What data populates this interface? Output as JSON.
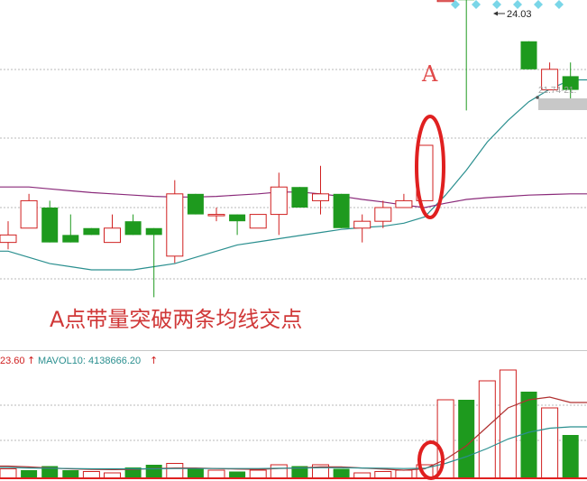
{
  "chart_data": [
    {
      "type": "candlestick",
      "panel": "price",
      "candles": [
        {
          "o": 17.56,
          "h": 17.78,
          "l": 17.33,
          "c": 17.44,
          "dir": "up"
        },
        {
          "o": 17.67,
          "h": 18.22,
          "l": 17.67,
          "c": 18.11,
          "dir": "up"
        },
        {
          "o": 18.0,
          "h": 18.11,
          "l": 17.44,
          "c": 17.44,
          "dir": "down"
        },
        {
          "o": 17.56,
          "h": 17.89,
          "l": 17.44,
          "c": 17.44,
          "dir": "down"
        },
        {
          "o": 17.67,
          "h": 17.67,
          "l": 17.56,
          "c": 17.56,
          "dir": "down"
        },
        {
          "o": 17.44,
          "h": 17.89,
          "l": 17.44,
          "c": 17.67,
          "dir": "up"
        },
        {
          "o": 17.78,
          "h": 17.89,
          "l": 17.56,
          "c": 17.56,
          "dir": "down"
        },
        {
          "o": 17.67,
          "h": 17.67,
          "l": 16.56,
          "c": 17.56,
          "dir": "down"
        },
        {
          "o": 17.22,
          "h": 18.44,
          "l": 17.11,
          "c": 18.22,
          "dir": "up"
        },
        {
          "o": 18.22,
          "h": 18.22,
          "l": 17.89,
          "c": 17.89,
          "dir": "down"
        },
        {
          "o": 17.89,
          "h": 18.0,
          "l": 17.78,
          "c": 17.89,
          "dir": "up"
        },
        {
          "o": 17.89,
          "h": 17.89,
          "l": 17.56,
          "c": 17.78,
          "dir": "down"
        },
        {
          "o": 17.67,
          "h": 17.89,
          "l": 17.67,
          "c": 17.89,
          "dir": "up"
        },
        {
          "o": 17.89,
          "h": 18.56,
          "l": 17.56,
          "c": 18.33,
          "dir": "up"
        },
        {
          "o": 18.33,
          "h": 18.33,
          "l": 18.0,
          "c": 18.0,
          "dir": "down"
        },
        {
          "o": 18.11,
          "h": 18.67,
          "l": 17.89,
          "c": 18.22,
          "dir": "up"
        },
        {
          "o": 18.22,
          "h": 18.22,
          "l": 17.67,
          "c": 17.67,
          "dir": "down"
        },
        {
          "o": 17.67,
          "h": 17.89,
          "l": 17.44,
          "c": 17.78,
          "dir": "up"
        },
        {
          "o": 17.78,
          "h": 18.11,
          "l": 17.67,
          "c": 18.0,
          "dir": "up"
        },
        {
          "o": 18.0,
          "h": 18.22,
          "l": 18.0,
          "c": 18.11,
          "dir": "up"
        },
        {
          "o": 18.11,
          "h": 19.0,
          "l": 18.11,
          "c": 19.0,
          "dir": "up"
        },
        {
          "o": 21.33,
          "h": 21.5,
          "l": 21.33,
          "c": 21.33,
          "dir": "up"
        },
        {
          "o": 21.33,
          "h": 23.44,
          "l": 19.56,
          "c": 21.67,
          "dir": "down"
        },
        {
          "o": 22.0,
          "h": 24.0,
          "l": 21.89,
          "c": 23.89,
          "dir": "up"
        },
        {
          "o": 23.0,
          "h": 23.67,
          "l": 21.89,
          "c": 22.11,
          "dir": "up"
        },
        {
          "o": 20.67,
          "h": 20.67,
          "l": 20.22,
          "c": 20.22,
          "dir": "down"
        },
        {
          "o": 20.22,
          "h": 20.33,
          "l": 19.89,
          "c": 19.89,
          "dir": "up"
        },
        {
          "o": 20.11,
          "h": 20.33,
          "l": 19.67,
          "c": 19.89,
          "dir": "down"
        }
      ],
      "ma_lines": [
        {
          "name": "",
          "color": "#2a8f8f",
          "values": [
            17.3,
            17.2,
            17.1,
            17.05,
            17.0,
            17.0,
            17.0,
            17.05,
            17.1,
            17.2,
            17.3,
            17.4,
            17.45,
            17.5,
            17.55,
            17.6,
            17.65,
            17.68,
            17.7,
            17.75,
            17.85,
            18.2,
            18.6,
            19.05,
            19.4,
            19.7,
            19.9,
            20.05
          ]
        },
        {
          "name": "",
          "color": "#8a2a7a",
          "values": [
            18.33,
            18.33,
            18.3,
            18.27,
            18.24,
            18.22,
            18.2,
            18.18,
            18.17,
            18.17,
            18.18,
            18.2,
            18.22,
            18.25,
            18.25,
            18.22,
            18.18,
            18.13,
            18.09,
            18.04,
            18.0,
            18.07,
            18.13,
            18.16,
            18.18,
            18.2,
            18.21,
            18.22
          ]
        }
      ],
      "annotations": [
        {
          "text": "24.03",
          "kind": "high-marker"
        },
        {
          "text": "21.74-21.",
          "kind": "price-tag"
        },
        {
          "text": "A",
          "kind": "point-label"
        },
        {
          "text": "A点带量突破两条均线交点",
          "kind": "caption"
        }
      ]
    },
    {
      "type": "bar",
      "panel": "volume",
      "header_value": "23.60",
      "header_label": "MAVOL10: 4138666.20",
      "values": [
        0.35,
        0.3,
        0.45,
        0.3,
        0.25,
        0.2,
        0.4,
        0.5,
        0.55,
        0.35,
        0.3,
        0.25,
        0.3,
        0.5,
        0.45,
        0.5,
        0.35,
        0.2,
        0.25,
        0.3,
        0.5,
        2.9,
        2.9,
        3.6,
        4.0,
        3.2,
        2.6,
        1.6
      ],
      "dir": [
        "up",
        "down",
        "down",
        "down",
        "up",
        "up",
        "down",
        "down",
        "up",
        "down",
        "up",
        "down",
        "up",
        "up",
        "down",
        "up",
        "down",
        "up",
        "up",
        "up",
        "up",
        "up",
        "down",
        "up",
        "up",
        "down",
        "up",
        "down"
      ],
      "ma_lines": [
        {
          "name": "",
          "color": "#b03030",
          "values": [
            0.45,
            0.42,
            0.38,
            0.35,
            0.33,
            0.32,
            0.33,
            0.36,
            0.38,
            0.38,
            0.36,
            0.34,
            0.33,
            0.36,
            0.38,
            0.42,
            0.42,
            0.38,
            0.34,
            0.3,
            0.35,
            0.7,
            1.2,
            1.9,
            2.6,
            2.9,
            3.0,
            2.8
          ]
        },
        {
          "name": "",
          "color": "#2a8f8f",
          "values": [
            0.4,
            0.38,
            0.37,
            0.36,
            0.35,
            0.35,
            0.35,
            0.35,
            0.36,
            0.36,
            0.36,
            0.36,
            0.36,
            0.37,
            0.38,
            0.39,
            0.39,
            0.38,
            0.37,
            0.36,
            0.37,
            0.55,
            0.8,
            1.1,
            1.45,
            1.7,
            1.85,
            1.9
          ]
        }
      ]
    }
  ]
}
